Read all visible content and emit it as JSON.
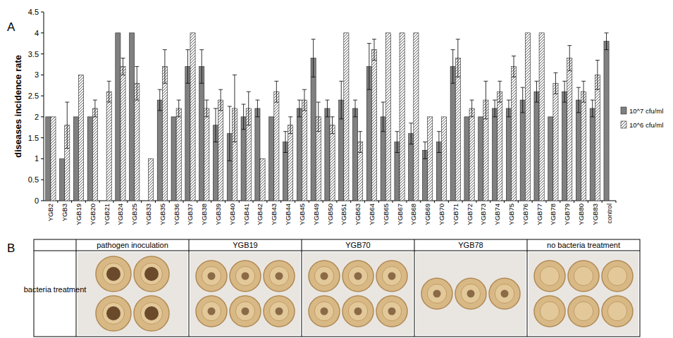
{
  "chart_data": {
    "type": "bar",
    "y_label": "diseases incidence rate",
    "categories": [
      "YGB2",
      "YGB3",
      "YGB19",
      "YGB20",
      "YGB21",
      "YGB24",
      "YGB25",
      "YGB33",
      "YGB35",
      "YGB36",
      "YGB37",
      "YGB38",
      "YGB39",
      "YGB40",
      "YGB41",
      "YGB42",
      "YGB43",
      "YGB44",
      "YGB45",
      "YGB49",
      "YGB50",
      "YGB51",
      "YGB63",
      "YGB64",
      "YGB65",
      "YGB67",
      "YGB68",
      "YGB69",
      "YGB70",
      "YGB71",
      "YGB72",
      "YGB73",
      "YGB74",
      "YGB75",
      "YGB76",
      "YGB77",
      "YGB78",
      "YGB79",
      "YGB80",
      "YGB83",
      "control"
    ],
    "series": [
      {
        "name": "10^7 cfu/ml",
        "color": "#808080",
        "values": [
          2,
          1,
          2,
          2,
          0,
          4,
          4,
          0,
          2.4,
          2,
          3.2,
          3.2,
          1.8,
          1.6,
          2,
          2.2,
          2,
          1.4,
          2.2,
          3.4,
          2.2,
          2.4,
          2.2,
          3.2,
          2,
          1.4,
          1.6,
          1.2,
          1.4,
          3.2,
          2,
          2,
          2.2,
          2.2,
          2.4,
          2.6,
          2,
          2.6,
          2.4,
          2.2,
          3.8
        ],
        "errors": [
          0,
          0,
          0,
          0,
          0,
          0,
          0,
          0,
          0.25,
          0,
          0.4,
          0.4,
          0.4,
          0.65,
          0.3,
          0.2,
          0,
          0.25,
          0.2,
          0.45,
          0.2,
          0.45,
          0.2,
          0.55,
          0.35,
          0.25,
          0.25,
          0.2,
          0.25,
          0.4,
          0,
          0,
          0.2,
          0.2,
          0.3,
          0.25,
          0,
          0.25,
          0.3,
          0.2,
          0.2
        ]
      },
      {
        "name": "10^6 cfu/ml",
        "color": "#ffffff",
        "values": [
          2,
          1.8,
          3,
          2.2,
          2.6,
          3.2,
          2.8,
          1,
          3.2,
          2.2,
          4,
          2.2,
          2.4,
          2.2,
          2.2,
          1,
          2.6,
          1.8,
          2.4,
          2,
          1.8,
          4,
          1.4,
          3.6,
          4,
          4,
          4,
          2,
          2,
          3.4,
          2.2,
          2.4,
          2.6,
          3.2,
          4,
          4,
          2.8,
          3.4,
          2.6,
          3,
          null
        ],
        "errors": [
          0,
          0.55,
          0,
          0.2,
          0.25,
          0.2,
          0.4,
          0,
          0.4,
          0.2,
          0,
          0.2,
          0.25,
          0.8,
          0.4,
          0,
          0.25,
          0.2,
          0.25,
          0.35,
          0.2,
          0,
          0.25,
          0.25,
          0,
          0,
          0,
          0,
          0,
          0.45,
          0.2,
          0.45,
          0.25,
          0.25,
          0,
          0,
          0.25,
          0.3,
          0.25,
          0.35,
          null
        ]
      }
    ],
    "ylim": [
      0,
      4.5
    ],
    "yticks": [
      0,
      0.5,
      1,
      1.5,
      2,
      2.5,
      3,
      3.5,
      4,
      4.5
    ],
    "grid": false,
    "legend": "right"
  },
  "panel_labels": [
    "A",
    "B"
  ],
  "table": {
    "headers": [
      "pathogen inoculation",
      "YGB19",
      "YGB70",
      "YGB78",
      "no bacteria treatment"
    ],
    "row_label": "bacteria treatment"
  }
}
